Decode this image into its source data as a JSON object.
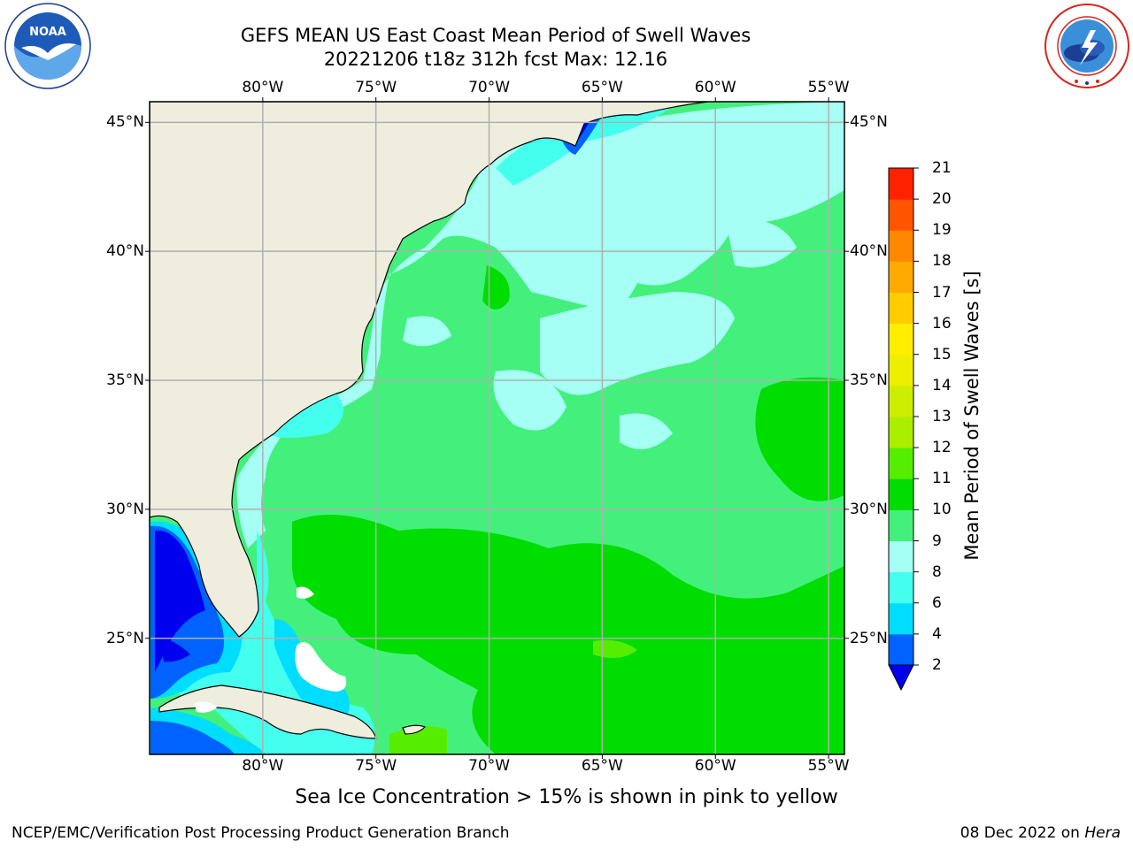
{
  "header": {
    "title_line1": "GEFS MEAN US East Coast Mean Period of Swell Waves",
    "title_line2": "20221206 t18z 312h fcst   Max: 12.16"
  },
  "logos": {
    "left": {
      "name": "noaa-logo",
      "text": "NOAA"
    },
    "right": {
      "name": "nws-logo",
      "text": "NATIONAL WEATHER SERVICE"
    }
  },
  "chart_data": {
    "type": "heatmap",
    "title": "GEFS MEAN US East Coast Mean Period of Swell Waves",
    "subtitle": "20221206 t18z 312h fcst   Max: 12.16",
    "max": 12.16,
    "lon_ticks": [
      "80°W",
      "75°W",
      "70°W",
      "65°W",
      "60°W",
      "55°W"
    ],
    "lon_values": [
      -80,
      -75,
      -70,
      -65,
      -60,
      -55
    ],
    "lat_ticks": [
      "45°N",
      "40°N",
      "35°N",
      "30°N",
      "25°N"
    ],
    "lat_values": [
      45,
      40,
      35,
      30,
      25
    ],
    "lon_range": [
      -85,
      -54.3
    ],
    "lat_range": [
      20.5,
      45.8
    ],
    "grid": true,
    "colorbar": {
      "label": "Mean Period of Swell Waves [s]",
      "ticks": [
        "2",
        "4",
        "6",
        "8",
        "9",
        "10",
        "11",
        "12",
        "13",
        "14",
        "15",
        "16",
        "17",
        "18",
        "19",
        "20",
        "21"
      ],
      "colors": [
        "#0063ff",
        "#00ddff",
        "#44ffee",
        "#a6fff4",
        "#44f07c",
        "#00dd00",
        "#55ee00",
        "#aaee00",
        "#ccee00",
        "#eeee00",
        "#ffee00",
        "#ffcc00",
        "#ffaa00",
        "#ff8800",
        "#ff5500",
        "#ff2200",
        "#ff0000"
      ],
      "under_color": "#0000ee",
      "extend": "min"
    },
    "dominant_fields": {
      "open_ocean": "9-11 s",
      "shelf_and_north": "8-9 s",
      "florida_bahamas_lee": "2-6 s"
    }
  },
  "footnote": "Sea Ice Concentration > 15% is shown in pink to yellow",
  "footer": {
    "left": "NCEP/EMC/Verification Post Processing Product Generation Branch",
    "right_date": "08 Dec 2022 on",
    "right_host": "Hera"
  },
  "colors": {
    "land": "#efedde",
    "grid": "#b0b0b0",
    "coast": "#000000"
  }
}
